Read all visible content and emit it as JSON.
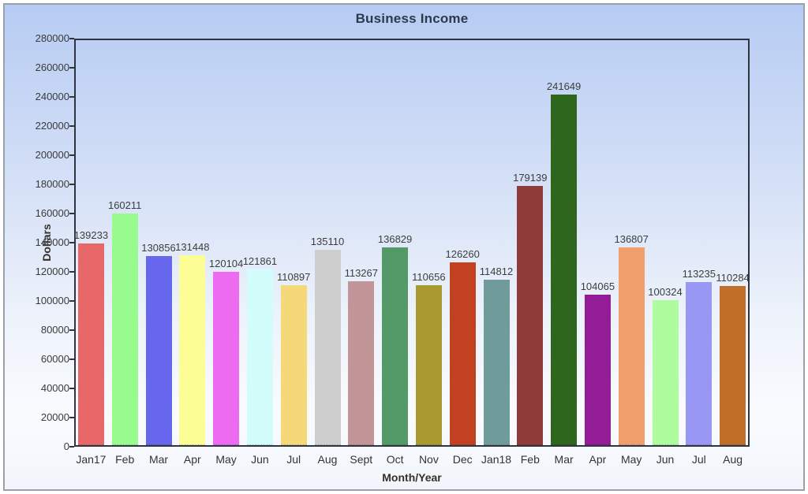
{
  "window": {
    "border_color": "#9ba1ab",
    "background_gradient_top": "#b7ccf3",
    "background_gradient_bottom": "#f2f6fc"
  },
  "chart_data": {
    "type": "bar",
    "title": "Business Income",
    "xlabel": "Month/Year",
    "ylabel": "Dollars",
    "categories": [
      "Jan17",
      "Feb",
      "Mar",
      "Apr",
      "May",
      "Jun",
      "Jul",
      "Aug",
      "Sept",
      "Oct",
      "Nov",
      "Dec",
      "Jan18",
      "Feb",
      "Mar",
      "Apr",
      "May",
      "Jun",
      "Jul",
      "Aug"
    ],
    "values": [
      139233,
      160211,
      130856,
      131448,
      120104,
      121861,
      110897,
      135110,
      113267,
      136829,
      110656,
      126260,
      114812,
      179139,
      241649,
      104065,
      136807,
      100324,
      113235,
      110284
    ],
    "bar_colors": [
      "#e8686a",
      "#98fb8e",
      "#6767ee",
      "#fdfd96",
      "#ed6bf1",
      "#d3fdfb",
      "#f5d878",
      "#cecece",
      "#c29598",
      "#549a68",
      "#a89a2e",
      "#c14121",
      "#709b9b",
      "#8e3b39",
      "#2d661c",
      "#921d97",
      "#f09f6c",
      "#affc9f",
      "#9897f4",
      "#c06f29"
    ],
    "value_labels_shown": true,
    "ylim": [
      0,
      280000
    ],
    "yticks": [
      0,
      20000,
      40000,
      60000,
      80000,
      100000,
      120000,
      140000,
      160000,
      180000,
      200000,
      220000,
      240000,
      260000,
      280000
    ],
    "grid": false,
    "legend": null,
    "axis_border_color": "#2f3540",
    "title_color": "#2c3a4f",
    "tick_label_color": "#3a3a3a",
    "value_label_color": "#3d3d3d"
  }
}
